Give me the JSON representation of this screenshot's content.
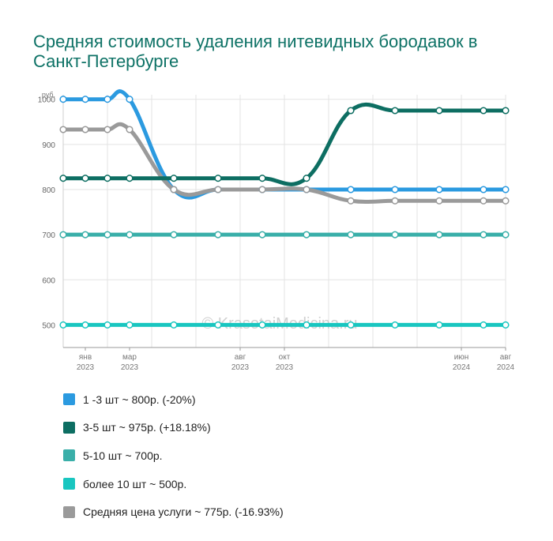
{
  "chart_data": {
    "type": "line",
    "title": "Средняя стоимость удаления нитевидных бородавок в Санкт-Петербурге",
    "y_unit": "руб.",
    "ylim": [
      450,
      1010
    ],
    "yticks": [
      500,
      600,
      700,
      800,
      900,
      1000
    ],
    "x": [
      "2022-12",
      "2023-01",
      "2023-02",
      "2023-03",
      "2023-04",
      "2023-05",
      "2023-06",
      "2023-07",
      "2023-08",
      "2023-09",
      "2023-10",
      "2023-11",
      "2023-12",
      "2024-01",
      "2024-02",
      "2024-03",
      "2024-04",
      "2024-05",
      "2024-06",
      "2024-07",
      "2024-08"
    ],
    "x_tick_labels": [
      {
        "month": "янв",
        "year": "2023",
        "at": "2023-01"
      },
      {
        "month": "мар",
        "year": "2023",
        "at": "2023-03"
      },
      {
        "month": "авг",
        "year": "2023",
        "at": "2023-08"
      },
      {
        "month": "окт",
        "year": "2023",
        "at": "2023-10"
      },
      {
        "month": "июн",
        "year": "2024",
        "at": "2024-06"
      },
      {
        "month": "авг",
        "year": "2024",
        "at": "2024-08"
      }
    ],
    "grid": true,
    "legend_position": "bottom",
    "watermark": "© KrasotaiMedicina.ru",
    "series": [
      {
        "name": "1 -3 шт ~ 800р. (-20%)",
        "color": "#2b9ae0",
        "points": [
          [
            "2022-12",
            1000
          ],
          [
            "2023-01",
            1000
          ],
          [
            "2023-02",
            1000
          ],
          [
            "2023-03",
            1000
          ],
          [
            "2023-05",
            800
          ],
          [
            "2023-07",
            800
          ],
          [
            "2023-09",
            800
          ],
          [
            "2023-11",
            800
          ],
          [
            "2024-01",
            800
          ],
          [
            "2024-03",
            800
          ],
          [
            "2024-05",
            800
          ],
          [
            "2024-07",
            800
          ],
          [
            "2024-08",
            800
          ]
        ]
      },
      {
        "name": "3-5 шт ~ 975р. (+18.18%)",
        "color": "#0d6e62",
        "points": [
          [
            "2022-12",
            825
          ],
          [
            "2023-01",
            825
          ],
          [
            "2023-02",
            825
          ],
          [
            "2023-03",
            825
          ],
          [
            "2023-05",
            825
          ],
          [
            "2023-07",
            825
          ],
          [
            "2023-09",
            825
          ],
          [
            "2023-11",
            825
          ],
          [
            "2024-01",
            975
          ],
          [
            "2024-03",
            975
          ],
          [
            "2024-05",
            975
          ],
          [
            "2024-07",
            975
          ],
          [
            "2024-08",
            975
          ]
        ]
      },
      {
        "name": "5-10 шт ~ 700р.",
        "color": "#3aafa9",
        "points": [
          [
            "2022-12",
            700
          ],
          [
            "2023-01",
            700
          ],
          [
            "2023-02",
            700
          ],
          [
            "2023-03",
            700
          ],
          [
            "2023-05",
            700
          ],
          [
            "2023-07",
            700
          ],
          [
            "2023-09",
            700
          ],
          [
            "2023-11",
            700
          ],
          [
            "2024-01",
            700
          ],
          [
            "2024-03",
            700
          ],
          [
            "2024-05",
            700
          ],
          [
            "2024-07",
            700
          ],
          [
            "2024-08",
            700
          ]
        ]
      },
      {
        "name": "более 10 шт ~ 500р.",
        "color": "#19c6c0",
        "points": [
          [
            "2022-12",
            500
          ],
          [
            "2023-01",
            500
          ],
          [
            "2023-02",
            500
          ],
          [
            "2023-03",
            500
          ],
          [
            "2023-05",
            500
          ],
          [
            "2023-07",
            500
          ],
          [
            "2023-09",
            500
          ],
          [
            "2023-11",
            500
          ],
          [
            "2024-01",
            500
          ],
          [
            "2024-03",
            500
          ],
          [
            "2024-05",
            500
          ],
          [
            "2024-07",
            500
          ],
          [
            "2024-08",
            500
          ]
        ]
      },
      {
        "name": "Средняя цена услуги ~ 775р. (-16.93%)",
        "color": "#9a9a9a",
        "points": [
          [
            "2022-12",
            933
          ],
          [
            "2023-01",
            933
          ],
          [
            "2023-02",
            933
          ],
          [
            "2023-03",
            933
          ],
          [
            "2023-05",
            800
          ],
          [
            "2023-07",
            800
          ],
          [
            "2023-09",
            800
          ],
          [
            "2023-11",
            800
          ],
          [
            "2024-01",
            775
          ],
          [
            "2024-03",
            775
          ],
          [
            "2024-05",
            775
          ],
          [
            "2024-07",
            775
          ],
          [
            "2024-08",
            775
          ]
        ]
      }
    ]
  }
}
